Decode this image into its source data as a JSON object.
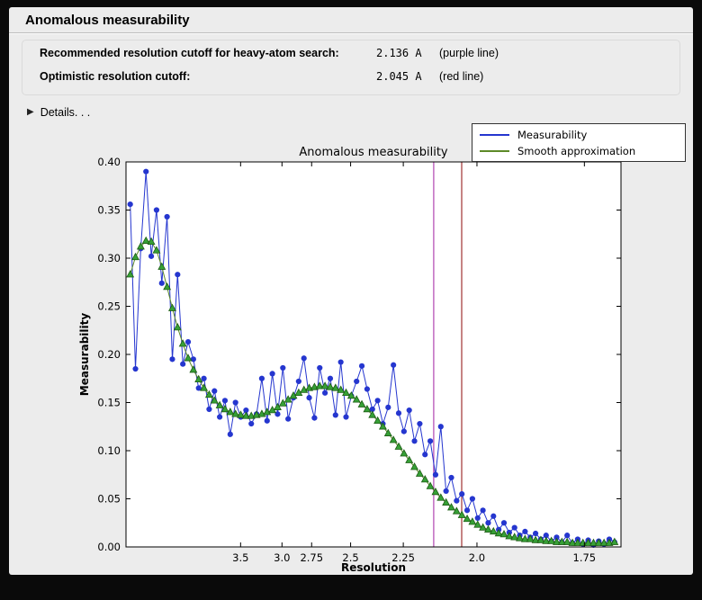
{
  "header": {
    "title": "Anomalous measurability"
  },
  "info": {
    "rows": [
      {
        "label": "Recommended resolution cutoff for heavy-atom search:",
        "value": "2.136 A",
        "note": "(purple line)"
      },
      {
        "label": "Optimistic resolution cutoff:",
        "value": "2.045 A",
        "note": "(red line)"
      }
    ],
    "details_label": "Details. . ."
  },
  "chart_data": {
    "type": "line",
    "title": "Anomalous measurability",
    "xlabel": "Resolution",
    "ylabel": "Measurability",
    "legend_position": "top-right",
    "grid": false,
    "x_axis": {
      "scale": "1/d^2",
      "min": 0.0,
      "max": 0.3526,
      "ticks": [
        {
          "label": "3.5",
          "value": 0.08163
        },
        {
          "label": "3.0",
          "value": 0.11111
        },
        {
          "label": "2.75",
          "value": 0.13223
        },
        {
          "label": "2.5",
          "value": 0.16
        },
        {
          "label": "2.25",
          "value": 0.19753
        },
        {
          "label": "2.0",
          "value": 0.25
        },
        {
          "label": "1.75",
          "value": 0.32653
        }
      ]
    },
    "y_axis": {
      "min": 0.0,
      "max": 0.4,
      "ticks": [
        {
          "label": "0.00",
          "value": 0.0
        },
        {
          "label": "0.05",
          "value": 0.05
        },
        {
          "label": "0.10",
          "value": 0.1
        },
        {
          "label": "0.15",
          "value": 0.15
        },
        {
          "label": "0.20",
          "value": 0.2
        },
        {
          "label": "0.25",
          "value": 0.25
        },
        {
          "label": "0.30",
          "value": 0.3
        },
        {
          "label": "0.35",
          "value": 0.35
        },
        {
          "label": "0.40",
          "value": 0.4
        }
      ]
    },
    "vlines": [
      {
        "name": "purple-cutoff-line",
        "label": "purple line",
        "resolution_A": 2.136,
        "value": 0.21919,
        "color": "#b044b0"
      },
      {
        "name": "red-cutoff-line",
        "label": "red line",
        "resolution_A": 2.045,
        "value": 0.23912,
        "color": "#a03232"
      }
    ],
    "x": [
      0.003,
      0.00675,
      0.0105,
      0.01425,
      0.018,
      0.02175,
      0.0255,
      0.02925,
      0.033,
      0.03675,
      0.0405,
      0.04425,
      0.048,
      0.05175,
      0.0555,
      0.05925,
      0.063,
      0.06675,
      0.0705,
      0.07425,
      0.078,
      0.08175,
      0.0855,
      0.08925,
      0.093,
      0.09675,
      0.1005,
      0.10425,
      0.108,
      0.11175,
      0.1155,
      0.11925,
      0.123,
      0.12675,
      0.1305,
      0.13425,
      0.138,
      0.14175,
      0.1455,
      0.14925,
      0.153,
      0.15675,
      0.1605,
      0.16425,
      0.168,
      0.17175,
      0.1755,
      0.17925,
      0.183,
      0.18675,
      0.1905,
      0.19425,
      0.198,
      0.20175,
      0.2055,
      0.20925,
      0.213,
      0.21675,
      0.2205,
      0.22425,
      0.228,
      0.23175,
      0.2355,
      0.23925,
      0.243,
      0.24675,
      0.2505,
      0.25425,
      0.258,
      0.26175,
      0.2655,
      0.26925,
      0.273,
      0.27675,
      0.2805,
      0.28425,
      0.288,
      0.29175,
      0.2955,
      0.29925,
      0.303,
      0.30675,
      0.3105,
      0.31425,
      0.318,
      0.32175,
      0.3255,
      0.32925,
      0.333,
      0.33675,
      0.3405,
      0.34425,
      0.348
    ],
    "series": [
      {
        "name": "Measurability",
        "color": "#2536cf",
        "marker": "circle",
        "values": [
          0.356,
          0.185,
          0.31,
          0.39,
          0.302,
          0.35,
          0.274,
          0.343,
          0.195,
          0.283,
          0.19,
          0.213,
          0.195,
          0.165,
          0.175,
          0.143,
          0.162,
          0.135,
          0.152,
          0.117,
          0.15,
          0.135,
          0.142,
          0.128,
          0.138,
          0.175,
          0.131,
          0.18,
          0.138,
          0.186,
          0.133,
          0.155,
          0.172,
          0.196,
          0.155,
          0.134,
          0.186,
          0.16,
          0.175,
          0.137,
          0.192,
          0.135,
          0.157,
          0.172,
          0.188,
          0.164,
          0.143,
          0.152,
          0.128,
          0.145,
          0.189,
          0.139,
          0.12,
          0.142,
          0.11,
          0.128,
          0.096,
          0.11,
          0.075,
          0.125,
          0.058,
          0.072,
          0.048,
          0.055,
          0.038,
          0.05,
          0.03,
          0.038,
          0.025,
          0.032,
          0.018,
          0.025,
          0.015,
          0.02,
          0.012,
          0.016,
          0.01,
          0.014,
          0.008,
          0.012,
          0.006,
          0.01,
          0.005,
          0.012,
          0.004,
          0.008,
          0.003,
          0.007,
          0.002,
          0.006,
          0.003,
          0.008,
          0.005
        ]
      },
      {
        "name": "Smooth approximation",
        "color": "#5d8a28",
        "marker": "triangle",
        "marker_fill": "#36a036",
        "marker_edge": "#1d5c14",
        "values": [
          0.283,
          0.301,
          0.312,
          0.318,
          0.317,
          0.308,
          0.291,
          0.27,
          0.248,
          0.228,
          0.211,
          0.196,
          0.184,
          0.174,
          0.165,
          0.158,
          0.152,
          0.147,
          0.143,
          0.14,
          0.138,
          0.137,
          0.136,
          0.136,
          0.137,
          0.138,
          0.14,
          0.142,
          0.145,
          0.149,
          0.153,
          0.157,
          0.16,
          0.163,
          0.165,
          0.166,
          0.167,
          0.167,
          0.166,
          0.165,
          0.163,
          0.16,
          0.157,
          0.153,
          0.148,
          0.143,
          0.137,
          0.131,
          0.125,
          0.118,
          0.111,
          0.104,
          0.097,
          0.09,
          0.083,
          0.076,
          0.07,
          0.063,
          0.057,
          0.051,
          0.046,
          0.041,
          0.037,
          0.033,
          0.029,
          0.026,
          0.023,
          0.02,
          0.018,
          0.016,
          0.014,
          0.013,
          0.011,
          0.01,
          0.009,
          0.008,
          0.008,
          0.007,
          0.007,
          0.006,
          0.006,
          0.005,
          0.005,
          0.005,
          0.004,
          0.004,
          0.004,
          0.004,
          0.004,
          0.004,
          0.004,
          0.004,
          0.005
        ]
      }
    ]
  }
}
